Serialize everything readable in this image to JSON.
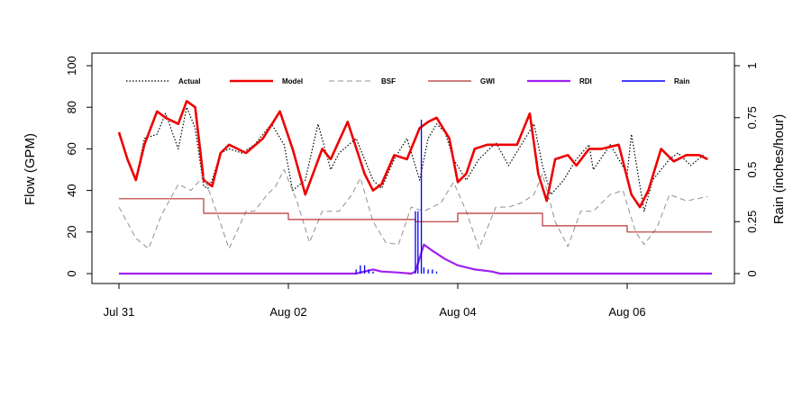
{
  "chart_data": {
    "type": "line",
    "title": "",
    "ylabel": "Flow (GPM)",
    "y2label": "Rain (inches/hour)",
    "ylim": [
      0,
      100
    ],
    "y2lim": [
      0,
      1
    ],
    "xlim": [
      0,
      7
    ],
    "y_ticks": [
      "0",
      "20",
      "40",
      "60",
      "80",
      "100"
    ],
    "y2_ticks": [
      "0",
      "0.25",
      "0.5",
      "0.75",
      "1"
    ],
    "x_tick_labels": [
      {
        "label": "Jul 31",
        "x": 0
      },
      {
        "label": "Aug 02",
        "x": 2
      },
      {
        "label": "Aug 04",
        "x": 4
      },
      {
        "label": "Aug 06",
        "x": 6
      }
    ],
    "grid": false,
    "legend_position": "top",
    "series": [
      {
        "name": "Actual",
        "color": "#000000",
        "style": "dotted",
        "x": [
          0,
          0.1,
          0.2,
          0.3,
          0.45,
          0.55,
          0.7,
          0.8,
          0.9,
          1.0,
          1.05,
          1.1,
          1.2,
          1.3,
          1.45,
          1.6,
          1.8,
          1.95,
          2.05,
          2.2,
          2.35,
          2.5,
          2.6,
          2.8,
          3.0,
          3.1,
          3.25,
          3.4,
          3.55,
          3.65,
          3.75,
          3.85,
          3.95,
          4.1,
          4.25,
          4.45,
          4.6,
          4.75,
          4.9,
          5.0,
          5.1,
          5.25,
          5.4,
          5.55,
          5.6,
          5.8,
          6.0,
          6.05,
          6.2,
          6.3,
          6.5,
          6.6,
          6.75,
          6.9
        ],
        "y": [
          67,
          55,
          45,
          65,
          67,
          77,
          60,
          80,
          70,
          42,
          41,
          45,
          58,
          60,
          58,
          62,
          72,
          62,
          40,
          45,
          72,
          50,
          58,
          65,
          45,
          41,
          55,
          65,
          45,
          65,
          72,
          68,
          55,
          45,
          55,
          63,
          52,
          62,
          72,
          52,
          38,
          45,
          55,
          62,
          50,
          62,
          48,
          67,
          30,
          45,
          55,
          58,
          52,
          57
        ]
      },
      {
        "name": "Model",
        "color": "#ee0000",
        "style": "solid",
        "x": [
          0,
          0.1,
          0.2,
          0.3,
          0.45,
          0.55,
          0.7,
          0.8,
          0.9,
          1.0,
          1.1,
          1.2,
          1.3,
          1.5,
          1.7,
          1.9,
          2.05,
          2.2,
          2.4,
          2.5,
          2.7,
          2.9,
          3.0,
          3.1,
          3.25,
          3.4,
          3.55,
          3.65,
          3.75,
          3.9,
          4.0,
          4.1,
          4.2,
          4.35,
          4.5,
          4.7,
          4.85,
          4.95,
          5.05,
          5.15,
          5.3,
          5.4,
          5.55,
          5.7,
          5.9,
          6.05,
          6.15,
          6.25,
          6.4,
          6.55,
          6.7,
          6.85,
          6.95
        ],
        "y": [
          68,
          55,
          45,
          62,
          78,
          75,
          72,
          83,
          80,
          45,
          42,
          58,
          62,
          58,
          65,
          78,
          60,
          38,
          60,
          55,
          73,
          48,
          40,
          43,
          57,
          55,
          70,
          73,
          75,
          65,
          44,
          48,
          60,
          62,
          62,
          62,
          77,
          48,
          35,
          55,
          57,
          52,
          60,
          60,
          62,
          38,
          32,
          40,
          60,
          54,
          57,
          57,
          55
        ]
      },
      {
        "name": "BSF",
        "color": "#909090",
        "style": "dashed",
        "x": [
          0,
          0.2,
          0.35,
          0.5,
          0.7,
          0.85,
          1.0,
          1.15,
          1.3,
          1.5,
          1.6,
          1.75,
          1.85,
          1.95,
          2.1,
          2.25,
          2.4,
          2.6,
          2.75,
          2.85,
          3.0,
          3.15,
          3.3,
          3.45,
          3.6,
          3.8,
          3.95,
          4.1,
          4.25,
          4.45,
          4.6,
          4.75,
          4.9,
          5.0,
          5.15,
          5.3,
          5.45,
          5.6,
          5.8,
          5.95,
          6.1,
          6.2,
          6.35,
          6.5,
          6.7,
          6.95
        ],
        "y": [
          32,
          17,
          12,
          28,
          43,
          40,
          47,
          30,
          12,
          30,
          30,
          38,
          42,
          50,
          35,
          15,
          30,
          30,
          38,
          46,
          25,
          15,
          14,
          32,
          30,
          34,
          44,
          30,
          12,
          32,
          32,
          34,
          38,
          48,
          25,
          13,
          30,
          30,
          38,
          40,
          20,
          14,
          22,
          38,
          35,
          37
        ]
      },
      {
        "name": "GWI",
        "color": "#b83232",
        "style": "solid",
        "x": [
          0,
          1.0,
          1.0,
          2.0,
          2.0,
          3.5,
          3.5,
          4.0,
          4.0,
          5.0,
          5.0,
          6.0,
          6.0,
          7.0
        ],
        "y": [
          36,
          36,
          29,
          29,
          26,
          26,
          25,
          25,
          29,
          29,
          23,
          23,
          20,
          20
        ]
      },
      {
        "name": "RDI",
        "color": "#a020f0",
        "style": "solid",
        "x": [
          0,
          2.8,
          2.9,
          3.0,
          3.1,
          3.3,
          3.45,
          3.5,
          3.6,
          3.7,
          3.85,
          4.0,
          4.2,
          4.4,
          4.5,
          5.0,
          6.0,
          7.0
        ],
        "y": [
          0,
          0,
          1,
          2,
          1,
          0.5,
          0,
          1,
          14,
          11,
          7,
          4,
          2,
          1,
          0,
          0,
          0,
          0
        ]
      },
      {
        "name": "Rain",
        "color": "#0000ff",
        "style": "bars",
        "x": [
          2.8,
          2.85,
          2.9,
          2.95,
          3.0,
          3.5,
          3.53,
          3.57,
          3.6,
          3.65,
          3.7,
          3.75
        ],
        "y": [
          0.02,
          0.04,
          0.04,
          0.02,
          0.01,
          0.3,
          0.3,
          0.74,
          0.03,
          0.02,
          0.02,
          0.01
        ]
      }
    ]
  }
}
